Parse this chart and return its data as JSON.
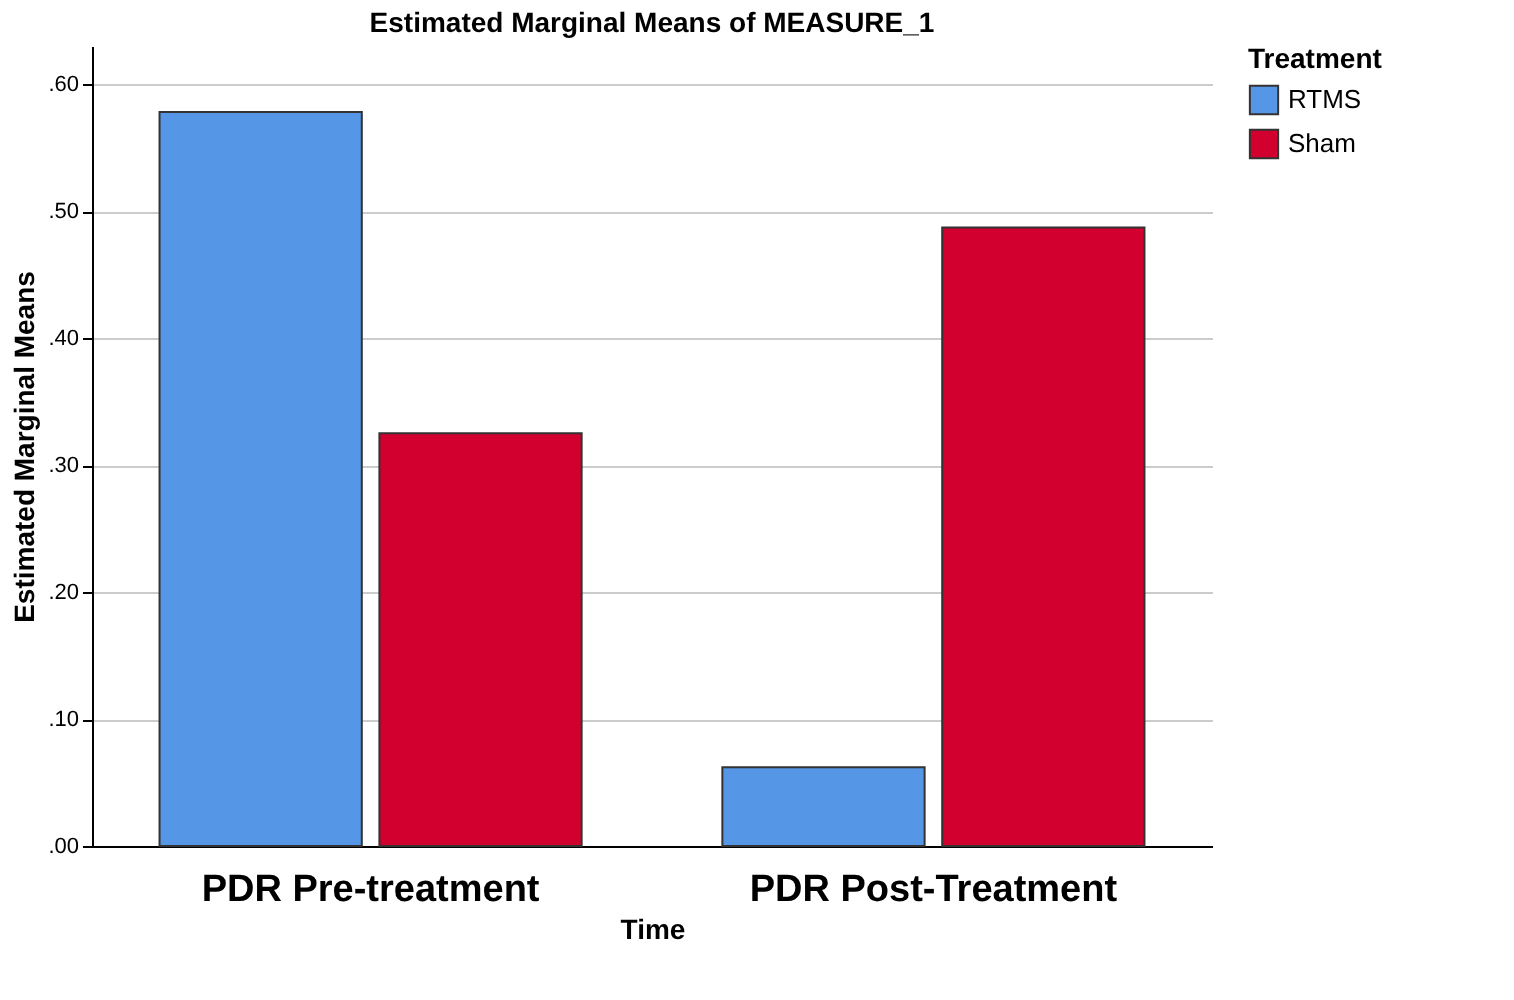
{
  "chart_data": {
    "type": "bar",
    "title": "Estimated Marginal Means of MEASURE_1",
    "xlabel": "Time",
    "ylabel": "Estimated Marginal Means",
    "legend_title": "Treatment",
    "categories": [
      "PDR Pre-treatment",
      "PDR Post-Treatment"
    ],
    "series": [
      {
        "name": "RTMS",
        "color": "#5596e6",
        "values": [
          0.578,
          0.062
        ]
      },
      {
        "name": "Sham",
        "color": "#d2002e",
        "values": [
          0.325,
          0.487
        ]
      }
    ],
    "ylim": [
      0,
      0.63
    ],
    "yticks": [
      {
        "value": 0,
        "label": ".00"
      },
      {
        "value": 0.1,
        "label": ".10"
      },
      {
        "value": 0.2,
        "label": ".20"
      },
      {
        "value": 0.3,
        "label": ".30"
      },
      {
        "value": 0.4,
        "label": ".40"
      },
      {
        "value": 0.5,
        "label": ".50"
      },
      {
        "value": 0.6,
        "label": ".60"
      }
    ],
    "grid": "y",
    "legend": "top right"
  }
}
